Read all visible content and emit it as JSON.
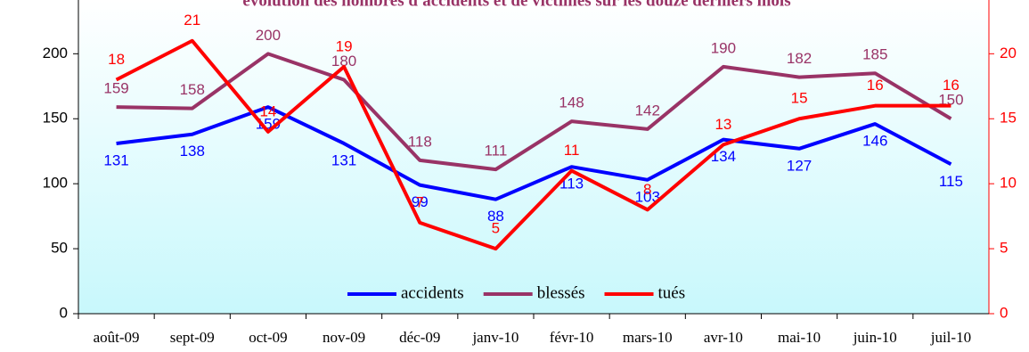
{
  "chart_data": {
    "type": "line",
    "title": "évolution des nombres d'accidents et de victimes sur les douze derniers mois",
    "categories": [
      "août-09",
      "sept-09",
      "oct-09",
      "nov-09",
      "déc-09",
      "janv-10",
      "févr-10",
      "mars-10",
      "avr-10",
      "mai-10",
      "juin-10",
      "juil-10"
    ],
    "series": [
      {
        "name": "accidents",
        "color": "#0000ff",
        "values": [
          131,
          138,
          159,
          131,
          99,
          88,
          113,
          103,
          134,
          127,
          146,
          115
        ]
      },
      {
        "name": "blessés",
        "color": "#993366",
        "values": [
          159,
          158,
          200,
          180,
          118,
          111,
          148,
          142,
          190,
          182,
          185,
          150
        ]
      },
      {
        "name": "tués",
        "color": "#ff0000",
        "values": [
          18,
          21,
          14,
          19,
          7,
          5,
          11,
          8,
          13,
          15,
          16,
          16
        ],
        "axis": "y2"
      }
    ],
    "ylim": [
      0,
      240
    ],
    "yticks": [
      0,
      50,
      100,
      150,
      200
    ],
    "y2lim": [
      0,
      24
    ],
    "y2ticks": [
      0,
      5,
      10,
      15,
      20
    ],
    "legend": "bottom"
  }
}
